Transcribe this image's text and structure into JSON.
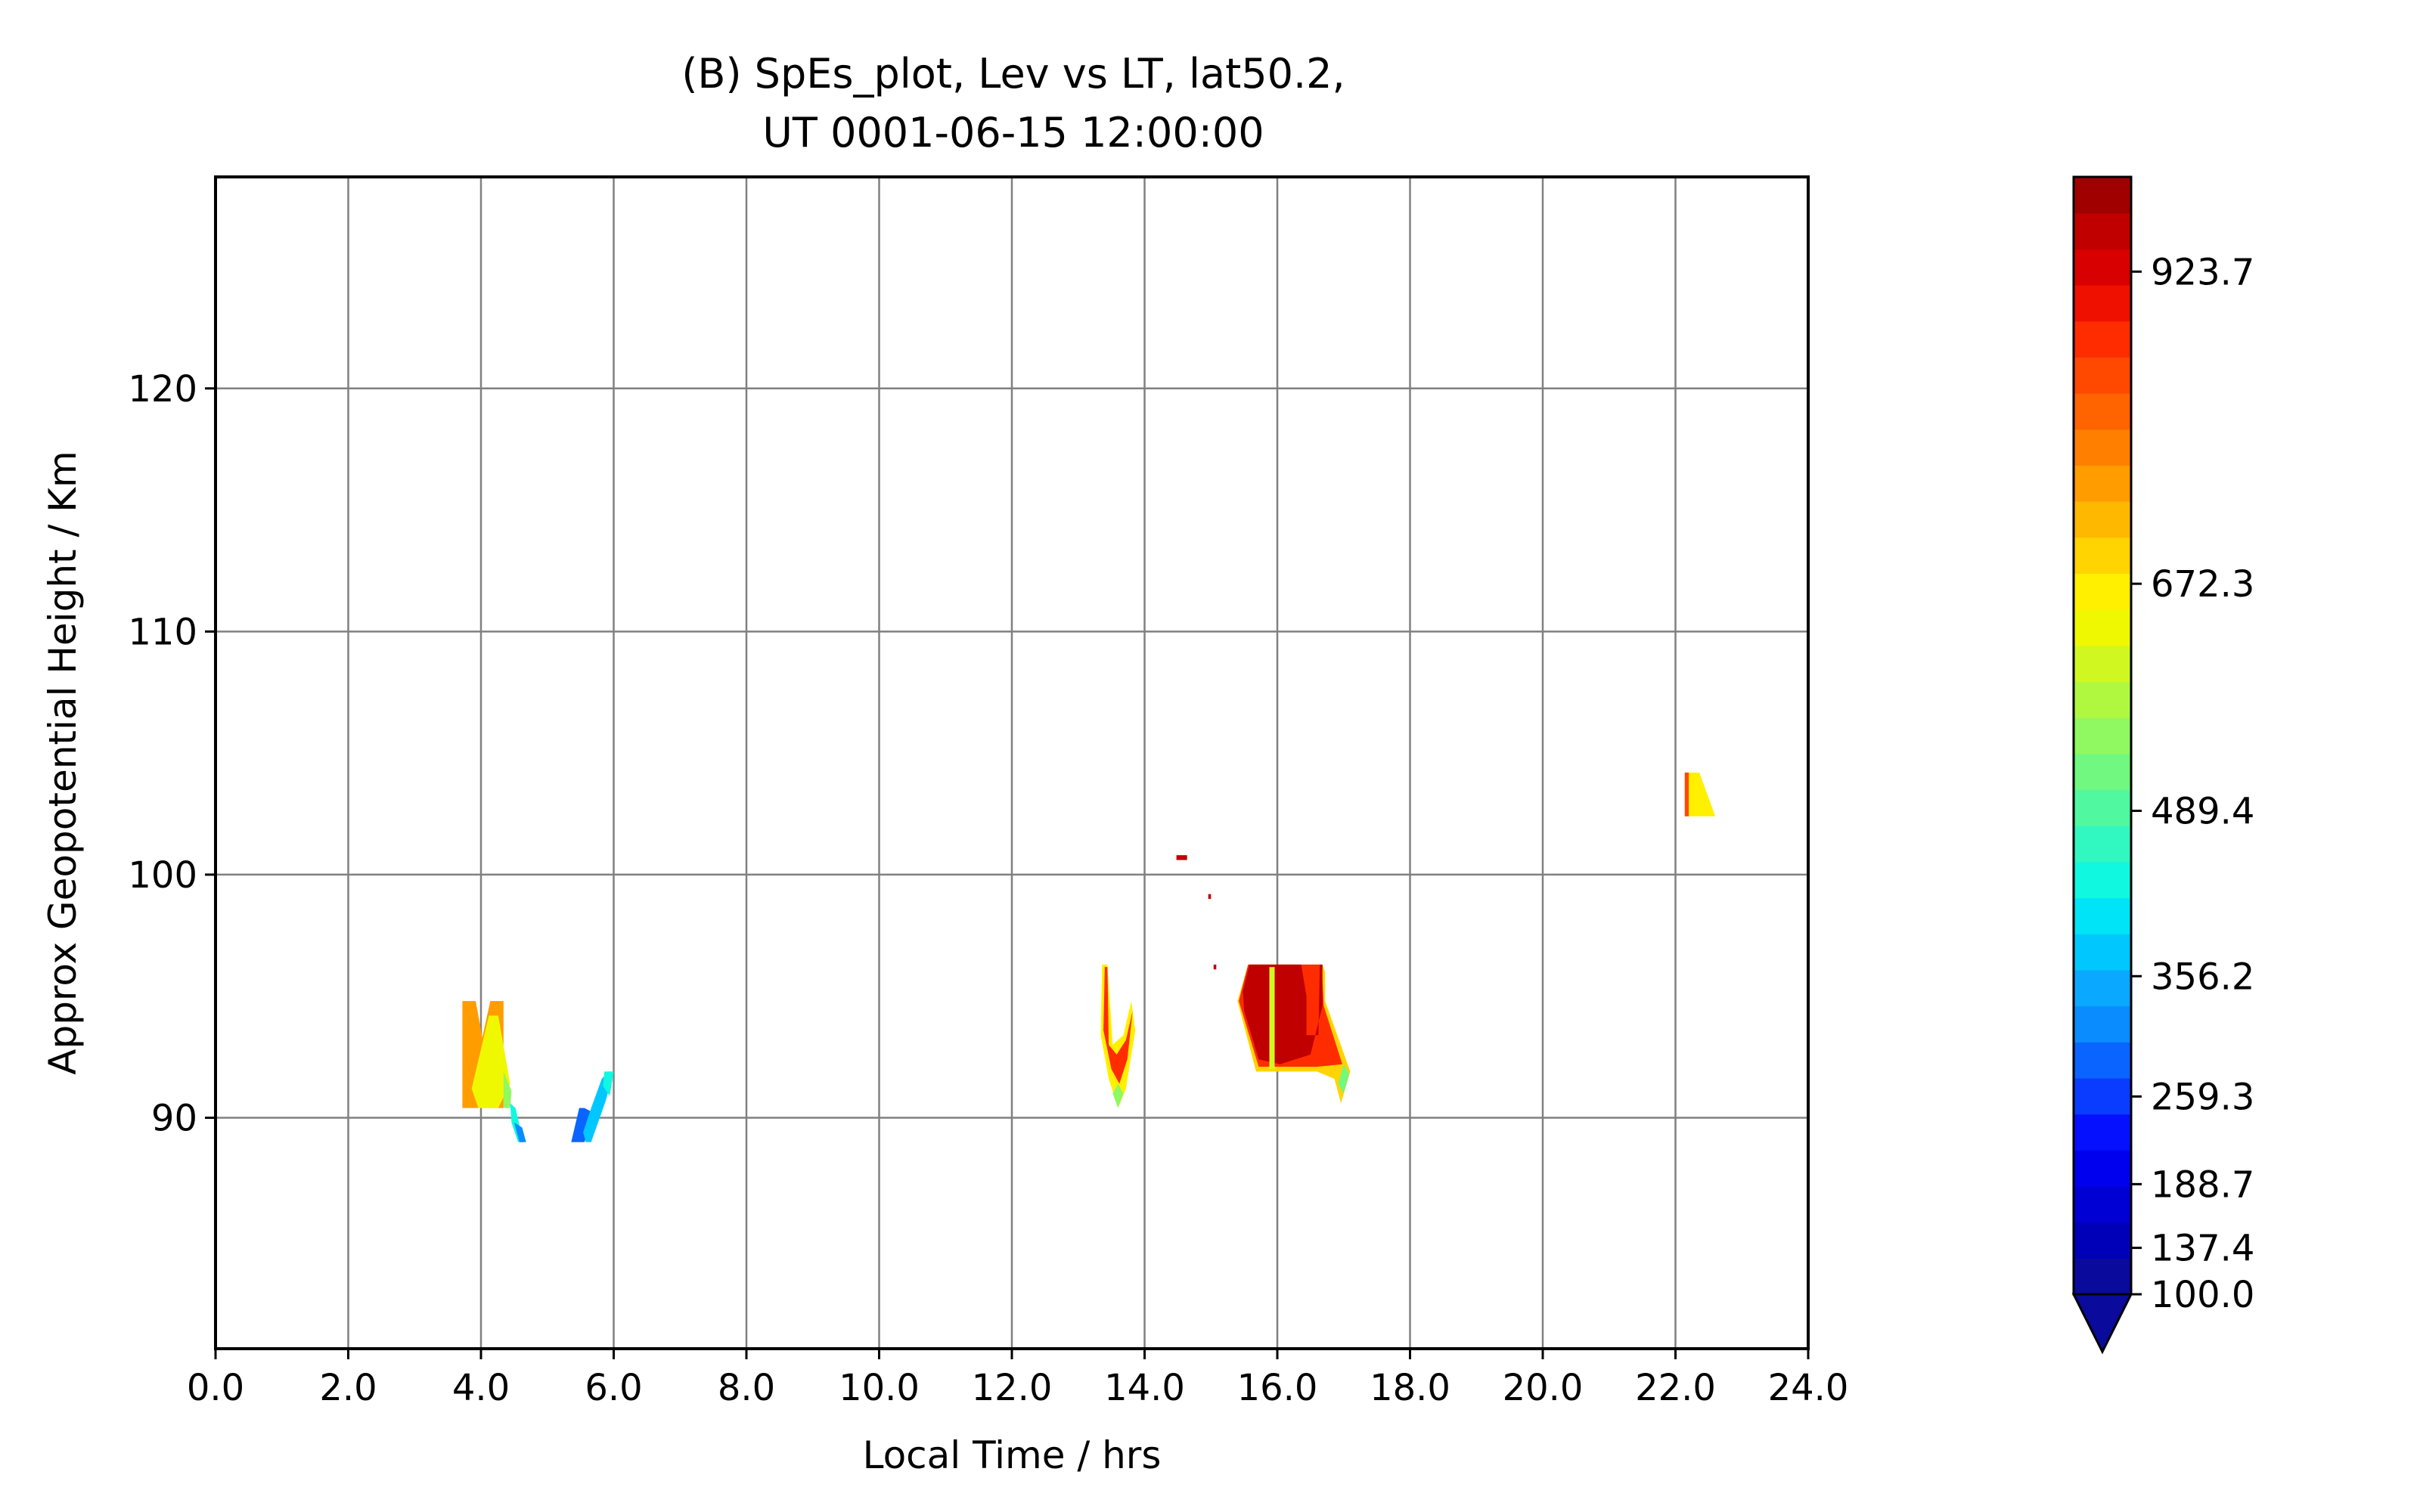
{
  "chart_data": {
    "type": "filled-contour",
    "title_line1": "(B) SpEs_plot, Lev vs LT, lat50.2,",
    "title_line2": "UT 0001-06-15 12:00:00",
    "xlabel": "Local Time / hrs",
    "ylabel": "Approx Geopotential Height / Km",
    "xlim": [
      0,
      24
    ],
    "ylim": [
      80.5,
      128.7
    ],
    "x_ticks": [
      "0.0",
      "2.0",
      "4.0",
      "6.0",
      "8.0",
      "10.0",
      "12.0",
      "14.0",
      "16.0",
      "18.0",
      "20.0",
      "22.0",
      "24.0"
    ],
    "x_tick_values": [
      0,
      2,
      4,
      6,
      8,
      10,
      12,
      14,
      16,
      18,
      20,
      22,
      24
    ],
    "y_ticks": [
      "90",
      "100",
      "110",
      "120"
    ],
    "y_tick_values": [
      90,
      100,
      110,
      120
    ],
    "grid": true,
    "colorbar": {
      "min": 100.0,
      "max": 1000.0,
      "extend": "min",
      "tick_labels": [
        "100.0",
        "137.4",
        "188.7",
        "259.3",
        "356.2",
        "489.4",
        "672.3",
        "923.7"
      ],
      "tick_values": [
        100.0,
        137.4,
        188.7,
        259.3,
        356.2,
        489.4,
        672.3,
        923.7
      ],
      "colors": [
        "#0a0a9c",
        "#0000b8",
        "#0000d4",
        "#0000ee",
        "#0510ff",
        "#0a3cff",
        "#0a64ff",
        "#0a8cff",
        "#0aa8ff",
        "#00c8ff",
        "#00e4f8",
        "#10f8e0",
        "#30f8c0",
        "#50f8a0",
        "#70f880",
        "#90f860",
        "#b0f840",
        "#d0f820",
        "#f0f800",
        "#fff000",
        "#ffd400",
        "#ffb800",
        "#ff9c00",
        "#ff8000",
        "#ff6400",
        "#ff4800",
        "#ff2c00",
        "#f01000",
        "#d80000",
        "#c00000",
        "#a00000"
      ]
    },
    "regions": [
      {
        "value": 760,
        "points": [
          [
            3.72,
            94.8
          ],
          [
            3.92,
            94.8
          ],
          [
            4.02,
            93.3
          ],
          [
            4.14,
            94.8
          ],
          [
            4.34,
            94.8
          ],
          [
            4.34,
            90.4
          ],
          [
            3.72,
            90.4
          ],
          [
            3.72,
            91.9
          ]
        ]
      },
      {
        "value": 640,
        "points": [
          [
            3.86,
            91.2
          ],
          [
            4.12,
            94.2
          ],
          [
            4.26,
            94.2
          ],
          [
            4.44,
            91.4
          ],
          [
            4.26,
            90.4
          ],
          [
            3.96,
            90.4
          ]
        ]
      },
      {
        "value": 560,
        "points": [
          [
            4.34,
            91.9
          ],
          [
            4.46,
            91.1
          ],
          [
            4.44,
            90.4
          ],
          [
            4.34,
            90.4
          ]
        ]
      },
      {
        "value": 420,
        "points": [
          [
            4.44,
            90.6
          ],
          [
            4.52,
            90.4
          ],
          [
            4.64,
            89.0
          ],
          [
            4.56,
            89.0
          ],
          [
            4.46,
            89.8
          ]
        ]
      },
      {
        "value": 310,
        "points": [
          [
            4.5,
            89.8
          ],
          [
            4.58,
            89.0
          ],
          [
            4.68,
            89.0
          ],
          [
            4.62,
            89.6
          ]
        ]
      },
      {
        "value": 300,
        "points": [
          [
            5.36,
            89.0
          ],
          [
            5.56,
            89.0
          ],
          [
            5.7,
            90.2
          ],
          [
            5.56,
            90.4
          ],
          [
            5.48,
            90.4
          ]
        ]
      },
      {
        "value": 380,
        "points": [
          [
            5.54,
            89.4
          ],
          [
            5.66,
            90.4
          ],
          [
            5.82,
            91.6
          ],
          [
            5.92,
            91.9
          ],
          [
            6.0,
            91.9
          ],
          [
            5.88,
            90.7
          ],
          [
            5.66,
            89.0
          ],
          [
            5.58,
            89.0
          ]
        ]
      },
      {
        "value": 440,
        "points": [
          [
            5.86,
            91.9
          ],
          [
            6.0,
            91.9
          ],
          [
            5.94,
            90.9
          ],
          [
            5.84,
            91.3
          ]
        ]
      },
      {
        "value": 680,
        "points": [
          [
            13.34,
            93.4
          ],
          [
            13.46,
            91.6
          ],
          [
            13.6,
            90.4
          ],
          [
            13.72,
            91.2
          ],
          [
            13.86,
            93.6
          ],
          [
            13.8,
            94.8
          ],
          [
            13.68,
            93.4
          ],
          [
            13.52,
            93.0
          ],
          [
            13.44,
            96.3
          ],
          [
            13.36,
            96.3
          ]
        ]
      },
      {
        "value": 860,
        "points": [
          [
            13.38,
            93.6
          ],
          [
            13.5,
            92.0
          ],
          [
            13.62,
            91.4
          ],
          [
            13.74,
            92.4
          ],
          [
            13.82,
            94.4
          ],
          [
            13.72,
            93.2
          ],
          [
            13.58,
            92.6
          ],
          [
            13.46,
            93.0
          ],
          [
            13.44,
            96.2
          ],
          [
            13.4,
            96.2
          ]
        ]
      },
      {
        "value": 560,
        "points": [
          [
            13.52,
            91.0
          ],
          [
            13.6,
            90.4
          ],
          [
            13.68,
            91.0
          ],
          [
            13.6,
            91.4
          ]
        ]
      },
      {
        "value": 960,
        "points": [
          [
            14.48,
            100.8
          ],
          [
            14.64,
            100.8
          ],
          [
            14.64,
            100.6
          ],
          [
            14.48,
            100.6
          ]
        ]
      },
      {
        "value": 960,
        "points": [
          [
            14.96,
            99.2
          ],
          [
            15.0,
            99.2
          ],
          [
            15.0,
            99.0
          ],
          [
            14.96,
            99.0
          ]
        ]
      },
      {
        "value": 960,
        "points": [
          [
            15.04,
            96.3
          ],
          [
            15.08,
            96.3
          ],
          [
            15.08,
            96.1
          ],
          [
            15.04,
            96.1
          ]
        ]
      },
      {
        "value": 700,
        "points": [
          [
            15.4,
            94.8
          ],
          [
            15.56,
            96.3
          ],
          [
            16.4,
            96.3
          ],
          [
            16.56,
            96.3
          ],
          [
            16.68,
            96.3
          ],
          [
            16.72,
            96.0
          ],
          [
            16.72,
            94.8
          ],
          [
            17.1,
            91.9
          ],
          [
            16.96,
            90.6
          ],
          [
            16.86,
            91.6
          ],
          [
            16.6,
            91.9
          ],
          [
            16.1,
            91.9
          ],
          [
            15.68,
            91.9
          ]
        ]
      },
      {
        "value": 860,
        "points": [
          [
            15.42,
            94.8
          ],
          [
            15.56,
            96.3
          ],
          [
            16.36,
            96.3
          ],
          [
            16.5,
            96.3
          ],
          [
            16.66,
            96.3
          ],
          [
            16.68,
            95.6
          ],
          [
            16.7,
            94.6
          ],
          [
            16.98,
            92.2
          ],
          [
            16.6,
            92.1
          ],
          [
            16.08,
            92.1
          ],
          [
            15.72,
            92.1
          ]
        ]
      },
      {
        "value": 960,
        "points": [
          [
            15.48,
            95.2
          ],
          [
            15.58,
            96.3
          ],
          [
            16.36,
            96.3
          ],
          [
            16.44,
            95.0
          ],
          [
            16.44,
            93.4
          ],
          [
            16.62,
            93.4
          ],
          [
            16.64,
            96.3
          ],
          [
            16.68,
            96.3
          ],
          [
            16.68,
            94.6
          ],
          [
            16.5,
            92.6
          ],
          [
            16.04,
            92.2
          ],
          [
            15.72,
            92.4
          ],
          [
            15.5,
            94.4
          ]
        ]
      },
      {
        "value": 620,
        "points": [
          [
            15.88,
            96.2
          ],
          [
            15.96,
            96.2
          ],
          [
            15.96,
            92.0
          ],
          [
            15.88,
            92.0
          ]
        ]
      },
      {
        "value": 520,
        "points": [
          [
            16.92,
            91.4
          ],
          [
            17.0,
            91.0
          ],
          [
            17.08,
            91.8
          ],
          [
            17.0,
            92.2
          ]
        ]
      },
      {
        "value": 680,
        "points": [
          [
            22.14,
            104.2
          ],
          [
            22.36,
            104.2
          ],
          [
            22.6,
            102.4
          ],
          [
            22.14,
            102.4
          ]
        ]
      },
      {
        "value": 840,
        "points": [
          [
            22.14,
            104.2
          ],
          [
            22.2,
            104.2
          ],
          [
            22.2,
            102.4
          ],
          [
            22.14,
            102.4
          ]
        ]
      }
    ]
  }
}
